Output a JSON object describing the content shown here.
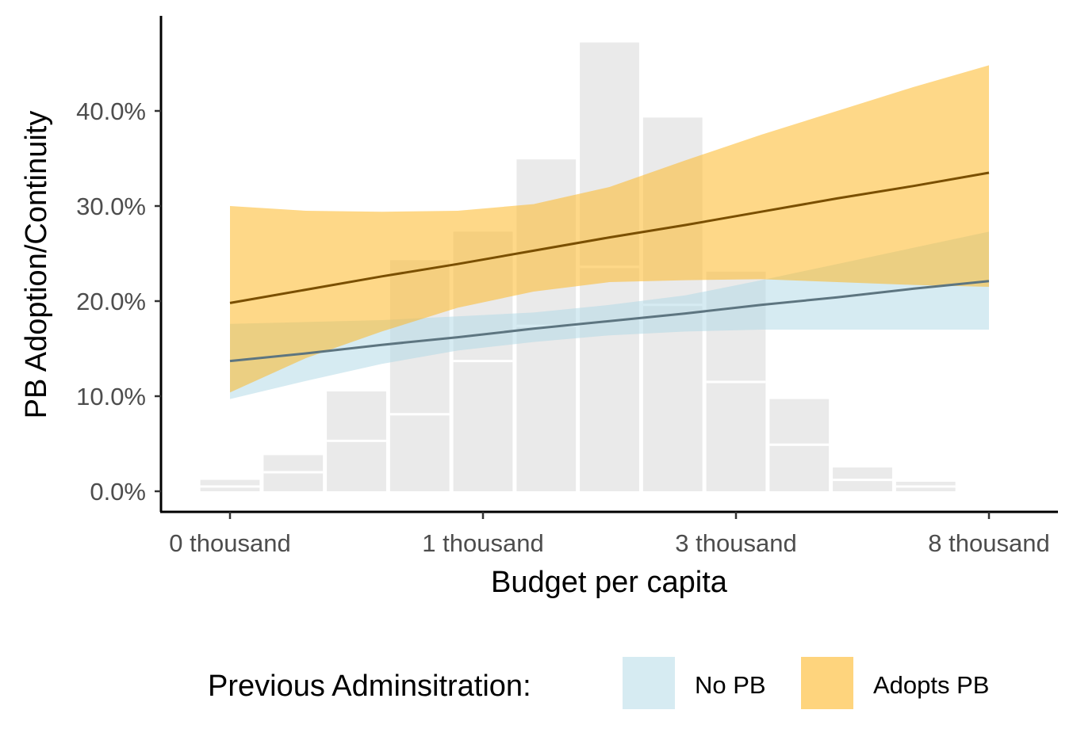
{
  "chart_data": {
    "type": "line",
    "title": "",
    "xlabel": "Budget per capita",
    "ylabel": "PB Adoption/Continuity",
    "x_scale": "log",
    "x_tick_labels": [
      "0 thousand",
      "1 thousand",
      "3 thousand",
      "8 thousand"
    ],
    "y_tick_labels": [
      "0.0%",
      "10.0%",
      "20.0%",
      "30.0%",
      "40.0%"
    ],
    "y_ticks": [
      0,
      10,
      20,
      30,
      40
    ],
    "ylim": [
      -2,
      50
    ],
    "grid": false,
    "legend": {
      "title": "Previous Adminsitration:",
      "position": "bottom",
      "entries": [
        {
          "label": "No PB",
          "color": "#add8e6"
        },
        {
          "label": "Adopts PB",
          "color": "#fdb827"
        }
      ]
    },
    "histogram": {
      "color": "#d9d9d9",
      "bins": [
        {
          "total": 1.2,
          "split": 0.5
        },
        {
          "total": 3.8,
          "split": 2.0
        },
        {
          "total": 10.5,
          "split": 5.3
        },
        {
          "total": 24.3,
          "split": 8.1
        },
        {
          "total": 27.3,
          "split": 13.7
        },
        {
          "total": 34.9,
          "split": 17.4
        },
        {
          "total": 47.2,
          "split": 23.6
        },
        {
          "total": 39.3,
          "split": 19.6
        },
        {
          "total": 23.1,
          "split": 11.5
        },
        {
          "total": 9.7,
          "split": 4.9
        },
        {
          "total": 2.5,
          "split": 1.2
        },
        {
          "total": 1.0,
          "split": 0.5
        }
      ]
    },
    "series": [
      {
        "name": "No PB",
        "fill": "#add8e6",
        "line_color": "#5d7580",
        "x": [
          0,
          0.1,
          0.2,
          0.3,
          0.4,
          0.5,
          0.6,
          0.7,
          0.8,
          0.9,
          1.0
        ],
        "fit": [
          13.7,
          14.5,
          15.4,
          16.2,
          17.1,
          17.9,
          18.7,
          19.6,
          20.4,
          21.3,
          22.1
        ],
        "upper": [
          17.6,
          17.8,
          18.0,
          18.4,
          18.8,
          19.6,
          20.6,
          22.2,
          23.9,
          25.6,
          27.3
        ],
        "lower": [
          9.7,
          11.6,
          13.4,
          14.8,
          15.7,
          16.4,
          16.8,
          17.0,
          17.0,
          17.0,
          17.0
        ]
      },
      {
        "name": "Adopts PB",
        "fill": "#fdb827",
        "line_color": "#7a4f00",
        "x": [
          0,
          0.1,
          0.2,
          0.3,
          0.4,
          0.5,
          0.6,
          0.7,
          0.8,
          0.9,
          1.0
        ],
        "fit": [
          19.8,
          21.2,
          22.6,
          23.9,
          25.3,
          26.7,
          28.0,
          29.4,
          30.8,
          32.1,
          33.5
        ],
        "upper": [
          30.0,
          29.5,
          29.4,
          29.5,
          30.2,
          32.0,
          34.8,
          37.5,
          40.0,
          42.5,
          44.8
        ],
        "lower": [
          10.4,
          14.0,
          16.8,
          19.3,
          21.0,
          22.0,
          22.2,
          22.3,
          22.0,
          21.7,
          21.5
        ]
      }
    ]
  }
}
